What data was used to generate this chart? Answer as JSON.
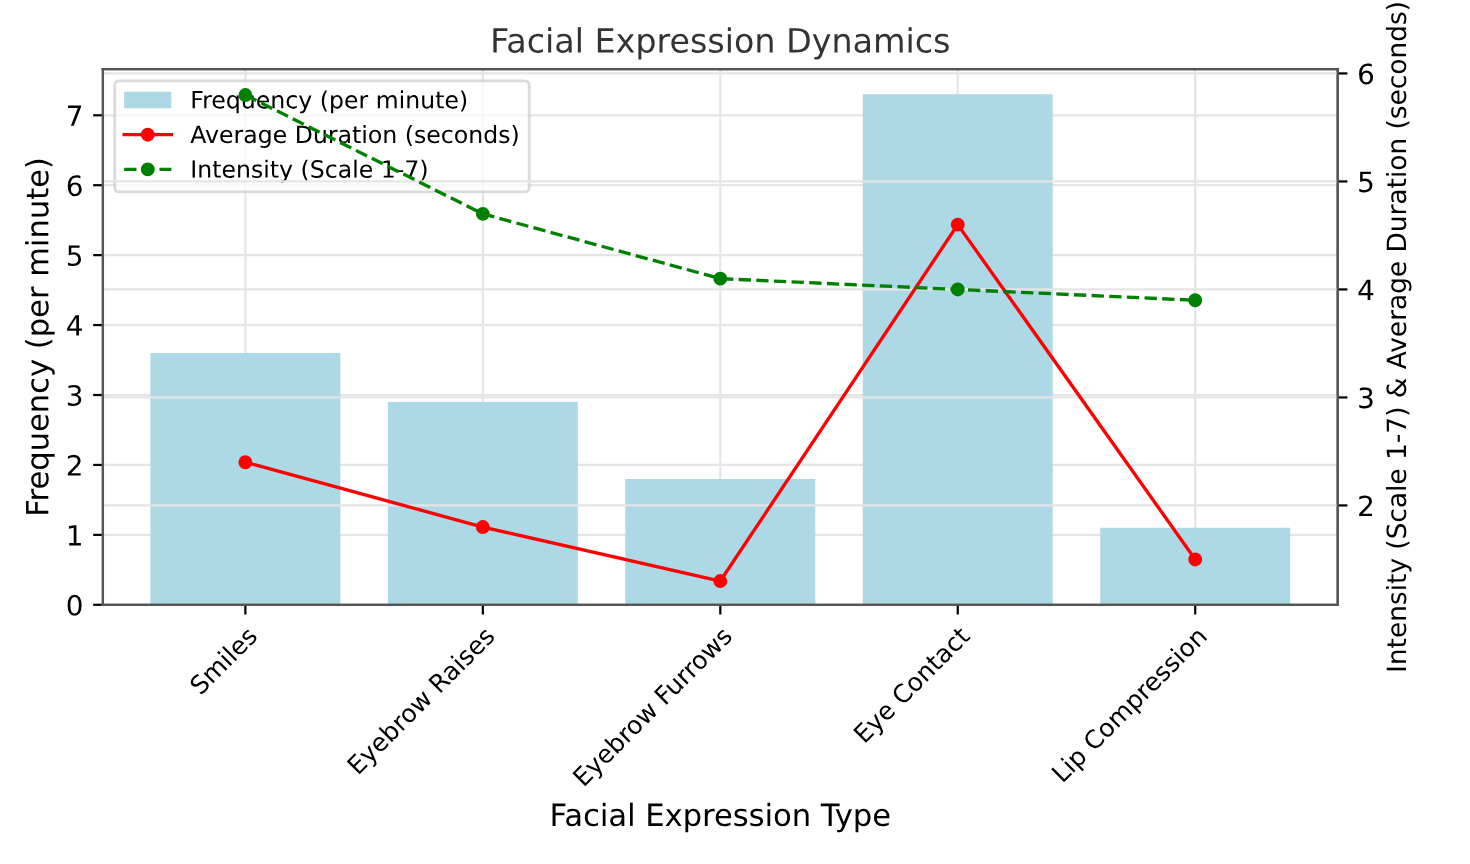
{
  "chart_data": {
    "type": "bar",
    "title": "Facial Expression Dynamics",
    "xlabel": "Facial Expression Type",
    "ylabel": "Frequency (per minute)",
    "y2label": "Intensity (Scale 1-7) & Average Duration (seconds)",
    "categories": [
      "Smiles",
      "Eyebrow Raises",
      "Eyebrow Furrows",
      "Eye Contact",
      "Lip Compression"
    ],
    "series": [
      {
        "name": "Frequency (per minute)",
        "color": "#add8e6",
        "values": [
          3.6,
          2.9,
          1.8,
          7.3,
          1.1
        ]
      },
      {
        "name": "Average Duration (seconds)",
        "type": "line",
        "axis": "y2",
        "color": "#ff0000",
        "marker": "circle",
        "line_style": "solid",
        "values": [
          2.4,
          1.8,
          1.3,
          4.6,
          1.5
        ]
      },
      {
        "name": "Intensity (Scale 1-7)",
        "type": "line",
        "axis": "y2",
        "color": "#008000",
        "marker": "circle",
        "line_style": "dashed",
        "values": [
          5.8,
          4.7,
          4.1,
          4.0,
          3.9
        ]
      }
    ],
    "ylim": [
      0,
      7.66
    ],
    "yticks": [
      0,
      1,
      2,
      3,
      4,
      5,
      6,
      7
    ],
    "y2lim": [
      1.08,
      6.04
    ],
    "y2ticks": [
      2,
      3,
      4,
      5,
      6
    ],
    "grid": true,
    "legend": "top left"
  }
}
